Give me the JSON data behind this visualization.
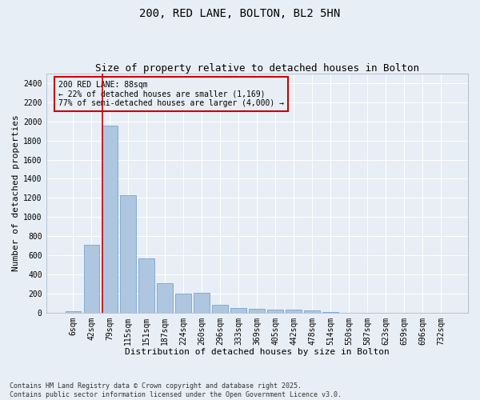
{
  "title": "200, RED LANE, BOLTON, BL2 5HN",
  "subtitle": "Size of property relative to detached houses in Bolton",
  "xlabel": "Distribution of detached houses by size in Bolton",
  "ylabel": "Number of detached properties",
  "categories": [
    "6sqm",
    "42sqm",
    "79sqm",
    "115sqm",
    "151sqm",
    "187sqm",
    "224sqm",
    "260sqm",
    "296sqm",
    "333sqm",
    "369sqm",
    "405sqm",
    "442sqm",
    "478sqm",
    "514sqm",
    "550sqm",
    "587sqm",
    "623sqm",
    "659sqm",
    "696sqm",
    "732sqm"
  ],
  "values": [
    15,
    710,
    1960,
    1230,
    570,
    305,
    200,
    205,
    80,
    47,
    38,
    35,
    35,
    25,
    8,
    0,
    0,
    0,
    0,
    0,
    0
  ],
  "bar_color": "#aec6e0",
  "bar_edge_color": "#6699cc",
  "background_color": "#e8eef5",
  "grid_color": "#ffffff",
  "vline_color": "#cc0000",
  "annotation_box_color": "#cc0000",
  "annotation_box_text": "200 RED LANE: 88sqm\n← 22% of detached houses are smaller (1,169)\n77% of semi-detached houses are larger (4,000) →",
  "ylim": [
    0,
    2500
  ],
  "yticks": [
    0,
    200,
    400,
    600,
    800,
    1000,
    1200,
    1400,
    1600,
    1800,
    2000,
    2200,
    2400
  ],
  "footnote": "Contains HM Land Registry data © Crown copyright and database right 2025.\nContains public sector information licensed under the Open Government Licence v3.0.",
  "title_fontsize": 10,
  "subtitle_fontsize": 9,
  "xlabel_fontsize": 8,
  "ylabel_fontsize": 8,
  "tick_fontsize": 7,
  "annotation_fontsize": 7,
  "footnote_fontsize": 6
}
